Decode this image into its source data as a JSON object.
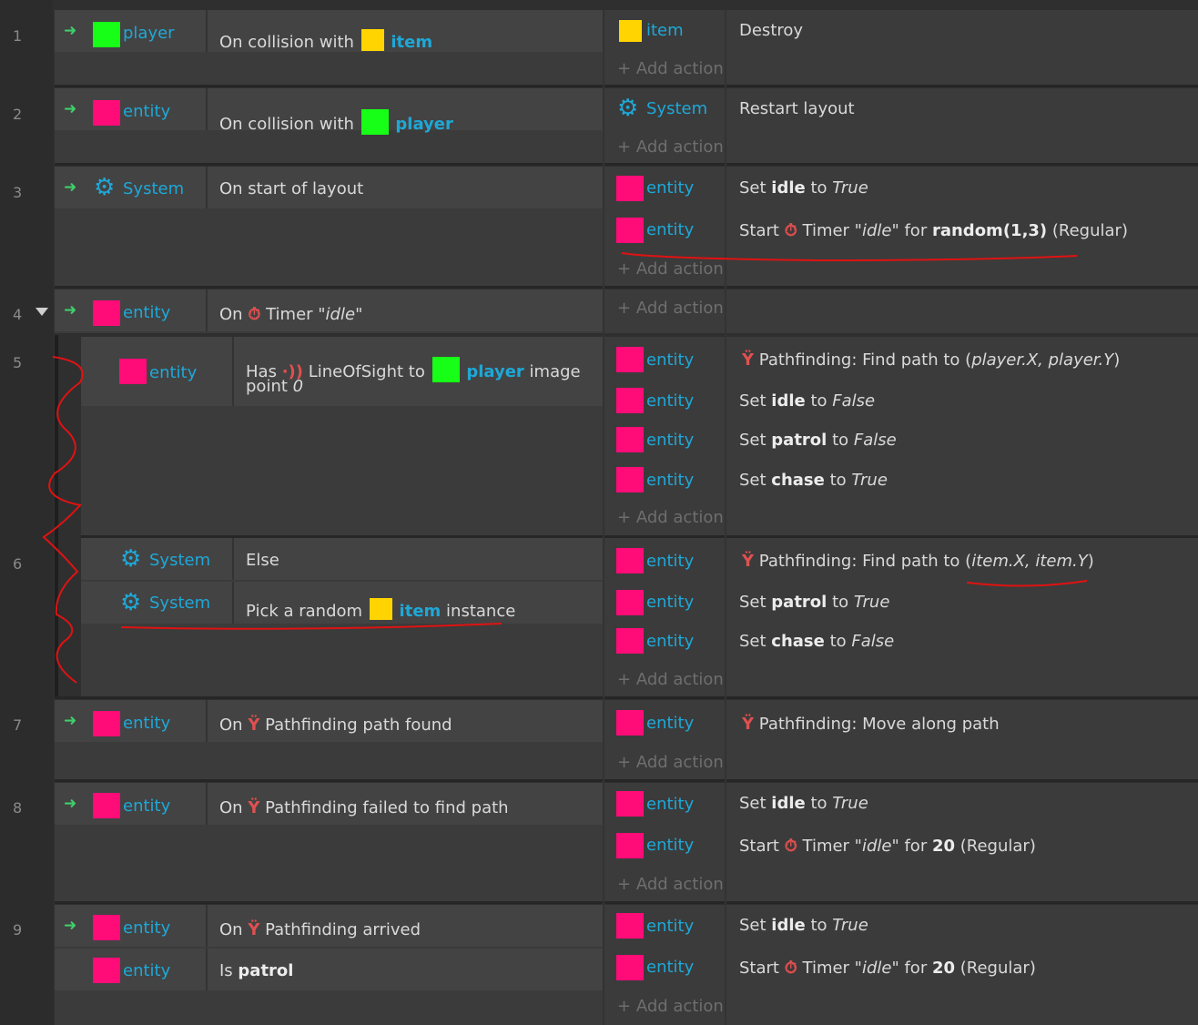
{
  "add_action_label": "Add action",
  "add_action_icon": "plus-icon",
  "colors": {
    "entity": "#ff0c78",
    "player": "#17ff17",
    "item": "#ffd400",
    "accent": "#1ea8d8"
  },
  "events": [
    {
      "num": "1",
      "cond_obj": "player",
      "cond_text": "On collision with",
      "cond_target": "item",
      "actions": [
        {
          "obj": "item",
          "text": "Destroy"
        }
      ]
    },
    {
      "num": "2",
      "cond_obj": "entity",
      "cond_text": "On collision with",
      "cond_target": "player",
      "actions": [
        {
          "obj": "System",
          "text": "Restart layout"
        }
      ]
    },
    {
      "num": "3",
      "cond_obj": "System",
      "cond_text": "On start of layout",
      "actions": [
        {
          "obj": "entity",
          "pre": "Set",
          "var": "idle",
          "mid": "to",
          "val": "True"
        },
        {
          "obj": "entity",
          "pre": "Start",
          "timer": "Timer \"",
          "tname": "idle",
          "tmid": "\" for",
          "tval": "random(1,3)",
          "tpost": "(Regular)"
        }
      ]
    },
    {
      "num": "4",
      "cond_obj": "entity",
      "cond_pre": "On",
      "cond_timer": "Timer \"",
      "cond_tname": "idle",
      "cond_tpost": "\""
    },
    {
      "num": "5",
      "cond_obj": "entity",
      "cond_pre": "Has",
      "cond_beh": "LineOfSight to",
      "cond_target": "player",
      "cond_post": "image",
      "cond_line2": "point",
      "cond_line2_val": "0",
      "actions": [
        {
          "obj": "entity",
          "text": "Pathfinding: Find path to (",
          "args": "player.X, player.Y",
          "close": ")"
        },
        {
          "obj": "entity",
          "pre": "Set",
          "var": "idle",
          "mid": "to",
          "val": "False"
        },
        {
          "obj": "entity",
          "pre": "Set",
          "var": "patrol",
          "mid": "to",
          "val": "False"
        },
        {
          "obj": "entity",
          "pre": "Set",
          "var": "chase",
          "mid": "to",
          "val": "True"
        }
      ]
    },
    {
      "num": "6",
      "conds": [
        {
          "obj": "System",
          "text": "Else"
        },
        {
          "obj": "System",
          "text": "Pick a random",
          "target": "item",
          "post": "instance"
        }
      ],
      "actions": [
        {
          "obj": "entity",
          "text": "Pathfinding: Find path to (",
          "args": "item.X, item.Y",
          "close": ")"
        },
        {
          "obj": "entity",
          "pre": "Set",
          "var": "patrol",
          "mid": "to",
          "val": "True"
        },
        {
          "obj": "entity",
          "pre": "Set",
          "var": "chase",
          "mid": "to",
          "val": "False"
        }
      ]
    },
    {
      "num": "7",
      "cond_obj": "entity",
      "cond_pre": "On",
      "cond_text": "Pathfinding path found",
      "actions": [
        {
          "obj": "entity",
          "text": "Pathfinding: Move along path"
        }
      ]
    },
    {
      "num": "8",
      "cond_obj": "entity",
      "cond_pre": "On",
      "cond_text": "Pathfinding failed to find path",
      "actions": [
        {
          "obj": "entity",
          "pre": "Set",
          "var": "idle",
          "mid": "to",
          "val": "True"
        },
        {
          "obj": "entity",
          "pre": "Start",
          "timer": "Timer \"",
          "tname": "idle",
          "tmid": "\" for",
          "tval": "20",
          "tpost": "(Regular)"
        }
      ]
    },
    {
      "num": "9",
      "conds": [
        {
          "obj": "entity",
          "pre": "On",
          "text": "Pathfinding arrived"
        },
        {
          "obj": "entity",
          "pre": "Is",
          "var": "patrol"
        }
      ],
      "actions": [
        {
          "obj": "entity",
          "pre": "Set",
          "var": "idle",
          "mid": "to",
          "val": "True"
        },
        {
          "obj": "entity",
          "pre": "Start",
          "timer": "Timer \"",
          "tname": "idle",
          "tmid": "\" for",
          "tval": "20",
          "tpost": "(Regular)"
        }
      ]
    }
  ]
}
